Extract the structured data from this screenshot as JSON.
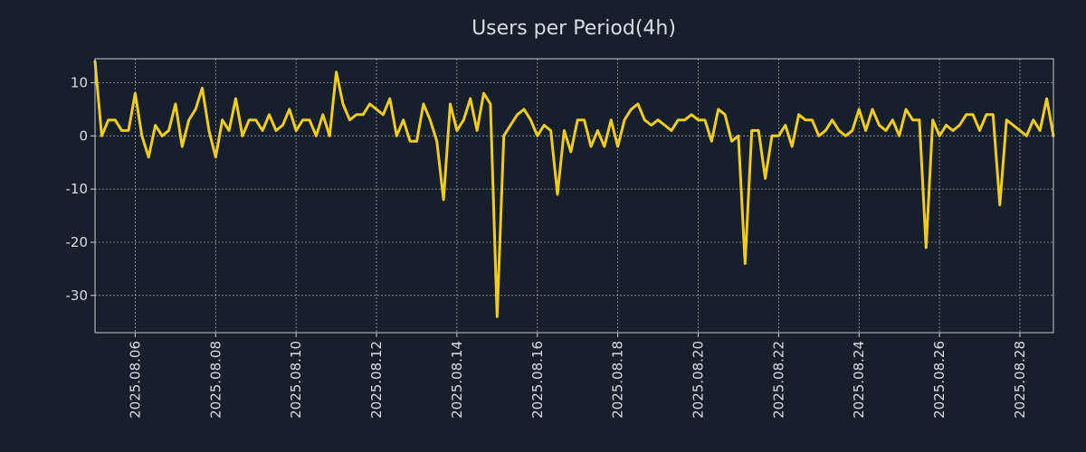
{
  "chart_data": {
    "type": "line",
    "title": "Users per Period(4h)",
    "xlabel": "",
    "ylabel": "",
    "ylim": [
      -37,
      14.5
    ],
    "grid": true,
    "line_color": "#f2cc1c",
    "background_color": "#16202c",
    "x_start": "2025.08.05 00:00",
    "interval_hours": 4,
    "x_ticks": [
      {
        "label": "2025.08.06",
        "index": 6
      },
      {
        "label": "2025.08.08",
        "index": 18
      },
      {
        "label": "2025.08.10",
        "index": 30
      },
      {
        "label": "2025.08.12",
        "index": 42
      },
      {
        "label": "2025.08.14",
        "index": 54
      },
      {
        "label": "2025.08.16",
        "index": 66
      },
      {
        "label": "2025.08.18",
        "index": 78
      },
      {
        "label": "2025.08.20",
        "index": 90
      },
      {
        "label": "2025.08.22",
        "index": 102
      },
      {
        "label": "2025.08.24",
        "index": 114
      },
      {
        "label": "2025.08.26",
        "index": 126
      },
      {
        "label": "2025.08.28",
        "index": 138
      }
    ],
    "y_ticks": [
      {
        "label": "10",
        "value": 10
      },
      {
        "label": "0",
        "value": 0
      },
      {
        "label": "-10",
        "value": -10
      },
      {
        "label": "-20",
        "value": -20
      },
      {
        "label": "-30",
        "value": -30
      }
    ],
    "series": [
      {
        "name": "Users",
        "values": [
          14,
          0,
          3,
          3,
          1,
          1,
          8,
          0,
          -4,
          2,
          0,
          1,
          6,
          -2,
          3,
          5,
          9,
          1,
          -4,
          3,
          1,
          7,
          0,
          3,
          3,
          1,
          4,
          1,
          2,
          5,
          1,
          3,
          3,
          0,
          4,
          0,
          12,
          6,
          3,
          4,
          4,
          6,
          5,
          4,
          7,
          0,
          3,
          -1,
          -1,
          6,
          3,
          -1,
          -12,
          6,
          1,
          3,
          7,
          1,
          8,
          6,
          -34,
          0,
          2,
          4,
          5,
          3,
          0,
          2,
          1,
          -11,
          1,
          -3,
          3,
          3,
          -2,
          1,
          -2,
          3,
          -2,
          3,
          5,
          6,
          3,
          2,
          3,
          2,
          1,
          3,
          3,
          4,
          3,
          3,
          -1,
          5,
          4,
          -1,
          0,
          -24,
          1,
          1,
          -8,
          0,
          0,
          2,
          -2,
          4,
          3,
          3,
          0,
          1,
          3,
          1,
          0,
          1,
          5,
          1,
          5,
          2,
          1,
          3,
          0,
          5,
          3,
          3,
          -21,
          3,
          0,
          2,
          1,
          2,
          4,
          4,
          1,
          4,
          4,
          -13,
          3,
          2,
          1,
          0,
          3,
          1,
          7,
          0
        ]
      }
    ]
  }
}
